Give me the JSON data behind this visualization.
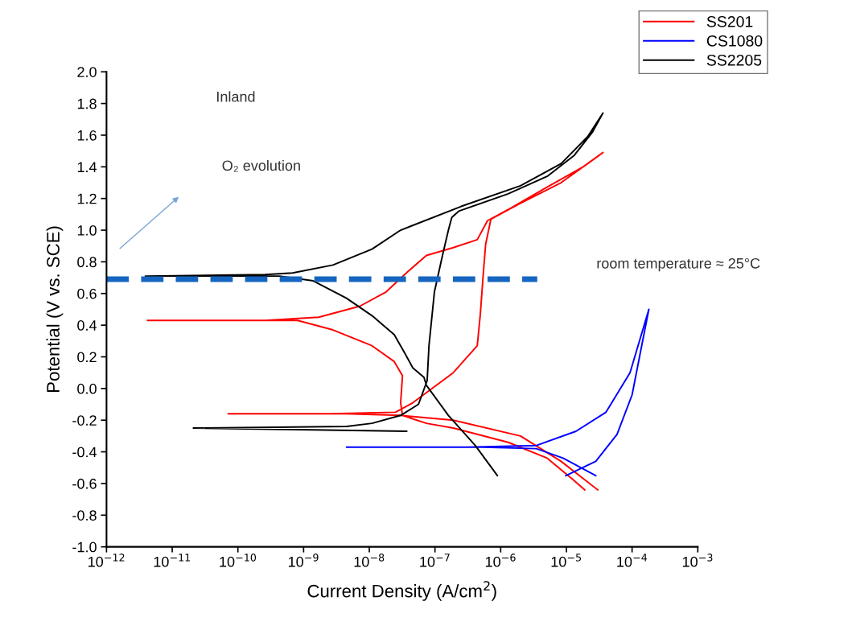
{
  "chart_data": {
    "type": "line",
    "xlabel": "Current Density (A/cm$^{2}$)",
    "ylabel": "Potential (V vs. SCE)",
    "log": "x",
    "grid": false,
    "legend": "top right",
    "marker": "none",
    "xlim": [
      1e-12,
      0.001
    ],
    "ylim": [
      -1.0,
      2.0
    ],
    "xticks": [
      {
        "value": 1e-12,
        "label": "10$^{−12}$"
      },
      {
        "value": 1e-11,
        "label": "10$^{−11}$"
      },
      {
        "value": 1e-10,
        "label": "10$^{−10}$"
      },
      {
        "value": 1e-09,
        "label": "10$^{−9}$"
      },
      {
        "value": 1e-08,
        "label": "10$^{−8}$"
      },
      {
        "value": 1e-07,
        "label": "10$^{−7}$"
      },
      {
        "value": 1e-06,
        "label": "10$^{−6}$"
      },
      {
        "value": 1e-05,
        "label": "10$^{−5}$"
      },
      {
        "value": 0.0001,
        "label": "10$^{−4}$"
      },
      {
        "value": 0.001,
        "label": "10$^{−3}$"
      }
    ],
    "yticks": [
      {
        "value": -1,
        "label": "-1.0"
      },
      -0.8,
      -0.6,
      -0.4,
      -0.2,
      {
        "value": 0,
        "label": "0.0"
      },
      0.2,
      0.4,
      0.6,
      0.8,
      {
        "value": 1,
        "label": "1.0"
      },
      1.2,
      1.4,
      1.6,
      1.8,
      {
        "value": 2,
        "label": "2.0"
      }
    ],
    "annotations": [
      "Inland",
      "O₂ evolution",
      "room temperature ≈ 25°C"
    ],
    "series": [
      {
        "name": "SS201",
        "color": "#ff0000",
        "x": [
          3e-05,
          8.3e-06,
          2e-06,
          1.9e-07,
          3e-08,
          4.5e-09,
          7.1e-11,
          2.5e-09,
          2.5e-08,
          4.6e-08,
          1.9e-07,
          4.4e-07,
          4.9e-07,
          5.4e-07,
          5.9e-07,
          7.1e-07,
          2e-06,
          8.3e-06,
          2.1e-05,
          3.6e-05,
          1.8e-05,
          5e-06,
          1.3e-06,
          6.3e-07,
          4.4e-07,
          1.9e-07,
          7.4e-08,
          3.9e-08,
          1.8e-08,
          7.2e-09,
          1.7e-09,
          2.6e-10,
          4.2e-12,
          8.1e-10,
          2.8e-09,
          1.1e-08,
          2.4e-08,
          3.2e-08,
          3e-08,
          3.2e-08,
          7.4e-08,
          1.9e-07,
          1.3e-06,
          5.1e-06,
          1.3e-05,
          1.9e-05
        ],
        "values": [
          -0.64,
          -0.46,
          -0.3,
          -0.2,
          -0.17,
          -0.16,
          -0.16,
          -0.16,
          -0.15,
          -0.09,
          0.1,
          0.27,
          0.47,
          0.71,
          0.91,
          1.07,
          1.17,
          1.3,
          1.42,
          1.49,
          1.4,
          1.27,
          1.13,
          1.06,
          0.94,
          0.89,
          0.84,
          0.74,
          0.61,
          0.52,
          0.45,
          0.43,
          0.43,
          0.43,
          0.37,
          0.27,
          0.17,
          0.08,
          -0.09,
          -0.17,
          -0.22,
          -0.25,
          -0.34,
          -0.44,
          -0.58,
          -0.64
        ]
      },
      {
        "name": "CS1080",
        "color": "#0000ff",
        "x": [
          2.8e-05,
          8.9e-06,
          3.5e-06,
          5.4e-07,
          4.5e-09,
          3.2e-07,
          3.5e-06,
          1.4e-05,
          4e-05,
          9.3e-05,
          0.00018,
          0.00014,
          0.0001,
          5.9e-05,
          2.8e-05,
          9.8e-06
        ],
        "values": [
          -0.55,
          -0.44,
          -0.38,
          -0.37,
          -0.37,
          -0.37,
          -0.36,
          -0.27,
          -0.15,
          0.1,
          0.5,
          0.27,
          -0.04,
          -0.29,
          -0.46,
          -0.55
        ]
      },
      {
        "name": "SS2205",
        "color": "#000000",
        "x": [
          3.7e-08,
          2.1e-11,
          4.5e-09,
          1.1e-08,
          3e-08,
          5.6e-08,
          7.6e-08,
          8.1e-08,
          9.8e-08,
          1.3e-07,
          1.6e-07,
          1.8e-07,
          2.3e-07,
          1.3e-06,
          5.1e-06,
          1.3e-05,
          2.5e-05,
          3.6e-05,
          2.1e-05,
          8.3e-06,
          2e-06,
          2.5e-07,
          3e-08,
          1.1e-08,
          2.8e-09,
          6.8e-10,
          2.6e-10,
          3.9e-12,
          4.3e-10,
          1.4e-09,
          4.5e-09,
          1.1e-08,
          2.4e-08,
          3.5e-08,
          4.6e-08,
          6.8e-08,
          7.4e-08,
          1.6e-07,
          4.1e-07,
          8.9e-07
        ],
        "values": [
          -0.27,
          -0.25,
          -0.24,
          -0.22,
          -0.17,
          -0.1,
          0.05,
          0.27,
          0.61,
          0.84,
          1.0,
          1.08,
          1.12,
          1.23,
          1.34,
          1.47,
          1.62,
          1.74,
          1.59,
          1.42,
          1.28,
          1.15,
          1.0,
          0.88,
          0.78,
          0.73,
          0.72,
          0.71,
          0.71,
          0.68,
          0.57,
          0.46,
          0.34,
          0.22,
          0.13,
          0.07,
          0.02,
          -0.17,
          -0.36,
          -0.55
        ]
      },
      {
        "color": "#1565c0",
        "line_style": "dashed",
        "x": [
          1e-12,
          3.6e-06
        ],
        "values": [
          0.69,
          0.69
        ]
      }
    ]
  }
}
